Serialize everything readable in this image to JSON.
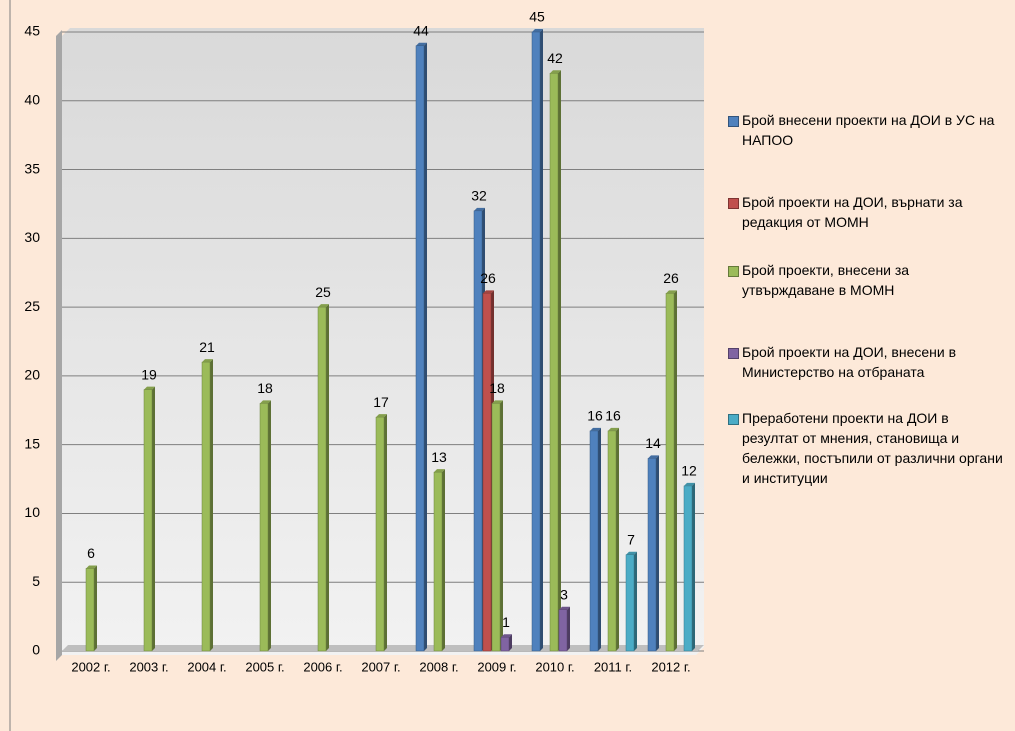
{
  "chart_data": {
    "type": "bar",
    "categories": [
      "2002 г.",
      "2003 г.",
      "2004 г.",
      "2005 г.",
      "2006 г.",
      "2007 г.",
      "2008 г.",
      "2009 г.",
      "2010 г.",
      "2011 г.",
      "2012 г."
    ],
    "series": [
      {
        "name": "Брой внесени проекти на ДОИ в УС на НАПОО",
        "color": "#4f81bd",
        "values": [
          null,
          null,
          null,
          null,
          null,
          null,
          44,
          32,
          45,
          16,
          14
        ]
      },
      {
        "name": "Брой проекти на ДОИ, върнати за редакция от МОМН",
        "color": "#c0504d",
        "values": [
          null,
          null,
          null,
          null,
          null,
          null,
          null,
          26,
          null,
          null,
          null
        ]
      },
      {
        "name": "Брой проекти, внесени за утвърждаване в МОМН",
        "color": "#9bbb59",
        "values": [
          6,
          19,
          21,
          18,
          25,
          17,
          13,
          18,
          42,
          16,
          26
        ]
      },
      {
        "name": "Брой проекти на ДОИ, внесени в Министерство на отбраната",
        "color": "#8064a2",
        "values": [
          null,
          null,
          null,
          null,
          null,
          null,
          null,
          1,
          3,
          null,
          null
        ]
      },
      {
        "name": "Преработени проекти на ДОИ в резултат от мнения, становища и бележки, постъпили от различни органи и институции",
        "color": "#4bacc6",
        "values": [
          null,
          null,
          null,
          null,
          null,
          null,
          null,
          null,
          null,
          7,
          12
        ]
      }
    ],
    "ylim": [
      0,
      45
    ],
    "yticks": [
      0,
      5,
      10,
      15,
      20,
      25,
      30,
      35,
      40,
      45
    ],
    "grid": true,
    "legend": "right"
  }
}
